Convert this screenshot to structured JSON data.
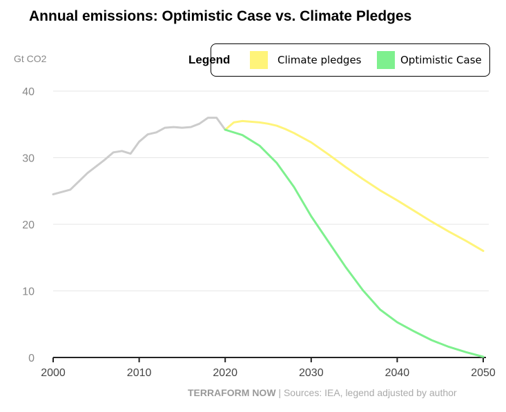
{
  "chart_data": {
    "type": "line",
    "title": "Annual emissions: Optimistic Case vs. Climate Pledges",
    "ylabel": "Gt CO2",
    "xlabel": "",
    "xlim": [
      2000,
      2050
    ],
    "ylim": [
      0,
      40
    ],
    "xticks": [
      2000,
      2010,
      2020,
      2030,
      2040,
      2050
    ],
    "yticks": [
      0,
      10,
      20,
      30,
      40
    ],
    "grid": "horizontal",
    "legend": {
      "title": "Legend",
      "placement": "top-right",
      "items": [
        {
          "label": "Climate pledges",
          "color": "#fff47a"
        },
        {
          "label": "Optimistic Case",
          "color": "#7ef08e"
        }
      ]
    },
    "series": [
      {
        "color": "#cccccc",
        "x": [
          2000,
          2002,
          2004,
          2006,
          2007,
          2008,
          2009,
          2010,
          2011,
          2012,
          2013,
          2014,
          2015,
          2016,
          2017,
          2018,
          2019,
          2020
        ],
        "y": [
          24.5,
          25.2,
          27.7,
          29.7,
          30.8,
          31.0,
          30.6,
          32.4,
          33.5,
          33.8,
          34.5,
          34.6,
          34.5,
          34.6,
          35.1,
          36.0,
          36.0,
          34.2
        ]
      },
      {
        "name": "Climate pledges",
        "color": "#fff47a",
        "x": [
          2020,
          2021,
          2022,
          2023,
          2024,
          2025,
          2026,
          2027,
          2028,
          2030,
          2032,
          2034,
          2036,
          2038,
          2040,
          2042,
          2044,
          2046,
          2048,
          2050
        ],
        "y": [
          34.2,
          35.3,
          35.5,
          35.4,
          35.3,
          35.1,
          34.8,
          34.3,
          33.7,
          32.3,
          30.5,
          28.6,
          26.8,
          25.1,
          23.6,
          22.0,
          20.4,
          18.9,
          17.5,
          16.0
        ]
      },
      {
        "name": "Optimistic Case",
        "color": "#7ef08e",
        "x": [
          2020,
          2022,
          2024,
          2026,
          2028,
          2030,
          2032,
          2034,
          2036,
          2038,
          2040,
          2042,
          2044,
          2046,
          2048,
          2050
        ],
        "y": [
          34.2,
          33.4,
          31.8,
          29.2,
          25.6,
          21.2,
          17.4,
          13.6,
          10.1,
          7.2,
          5.3,
          3.9,
          2.6,
          1.6,
          0.8,
          0.1
        ]
      }
    ]
  },
  "footer": {
    "brand": "TERRAFORM NOW",
    "sources": " | Sources: IEA, legend adjusted by author"
  }
}
